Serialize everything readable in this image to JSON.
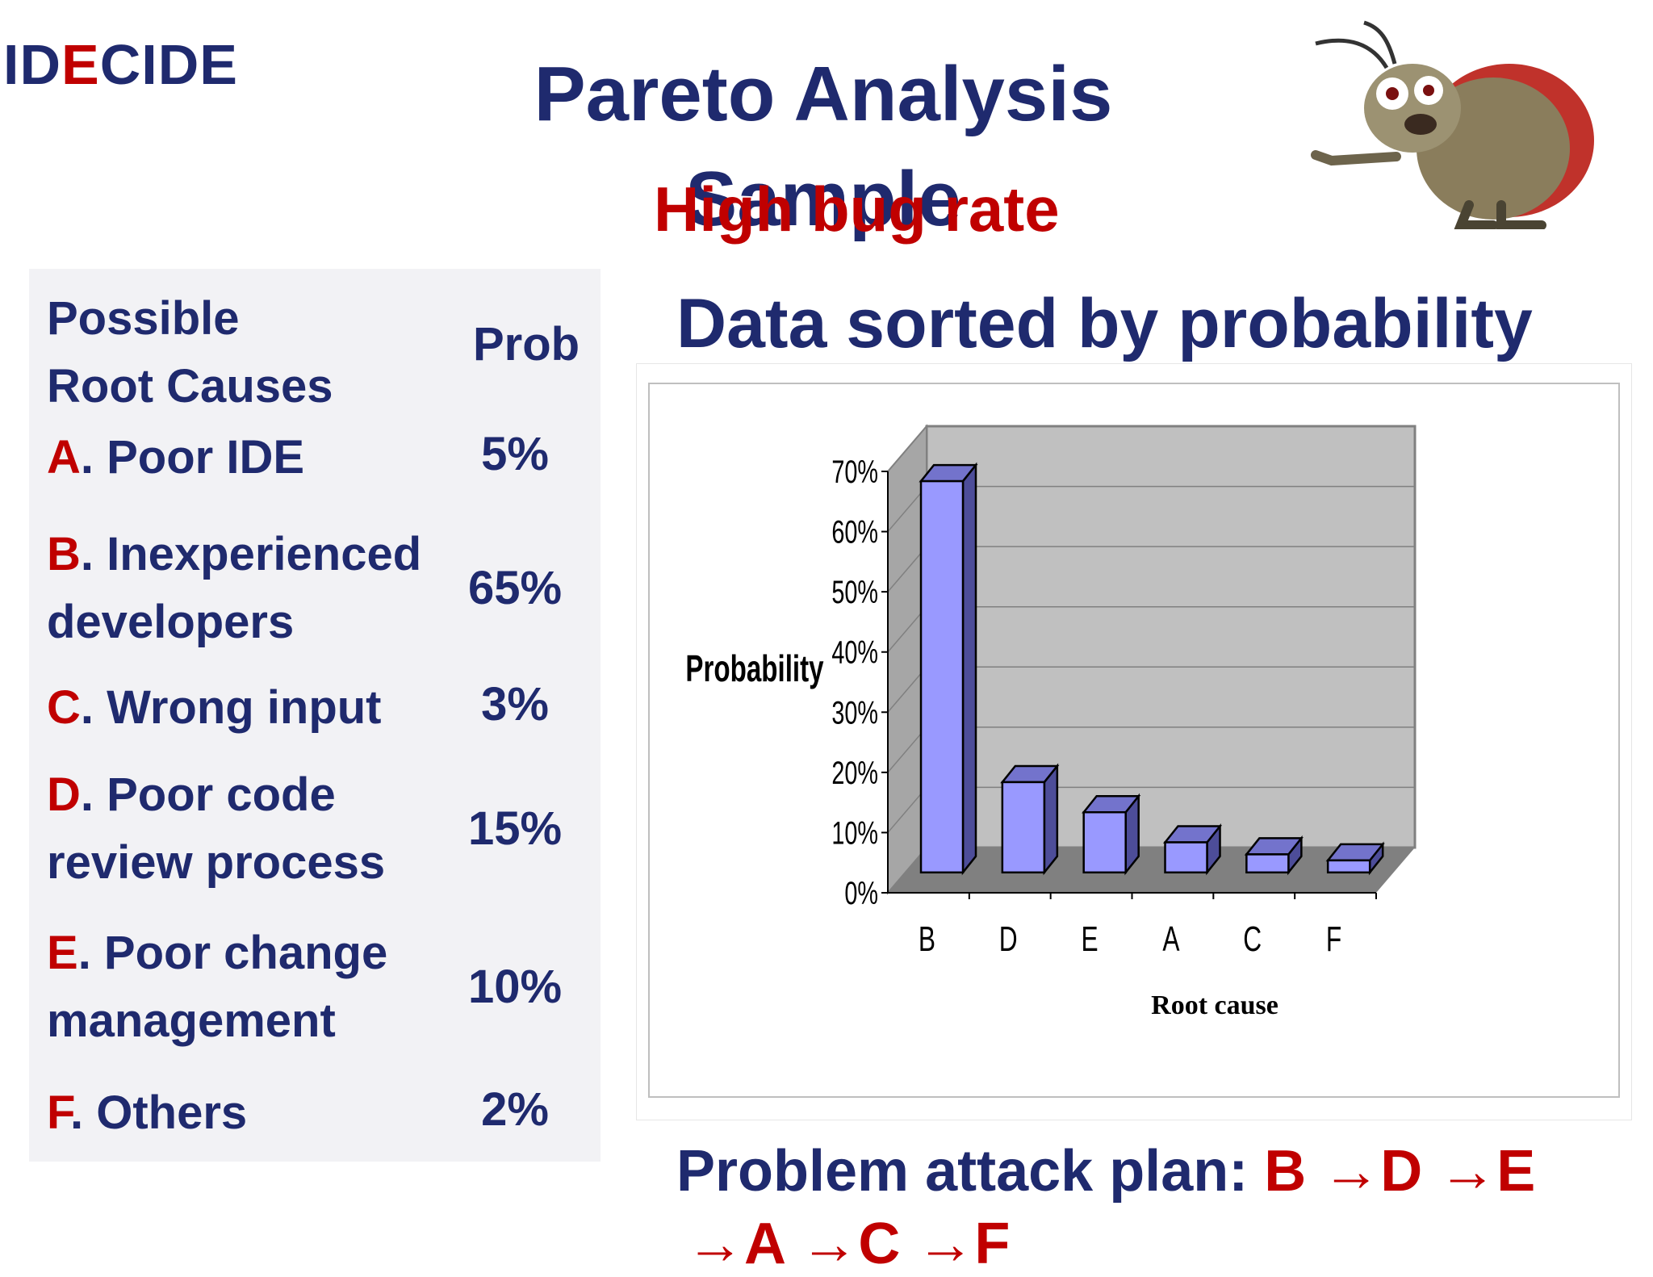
{
  "logo": {
    "prefix": "ID",
    "highlight": "E",
    "suffix": "CIDE"
  },
  "title": "Pareto Analysis Sample",
  "subtitle": "High bug rate",
  "heading": "Data sorted by probability",
  "table": {
    "header_cause_line1": "Possible",
    "header_cause_line2": "Root Causes",
    "header_prob": "Prob",
    "rows": [
      {
        "letter": "A",
        "text": ". Poor IDE",
        "prob": "5%"
      },
      {
        "letter": "B",
        "text": ". Inexperienced developers",
        "prob": "65%"
      },
      {
        "letter": "C",
        "text": ". Wrong input",
        "prob": "3%"
      },
      {
        "letter": "D",
        "text": ". Poor code review process",
        "prob": "15%"
      },
      {
        "letter": "E",
        "text": ". Poor change management",
        "prob": "10%"
      },
      {
        "letter": "F",
        "text": ". Others",
        "prob": "2%"
      }
    ]
  },
  "chart_data": {
    "type": "bar",
    "categories": [
      "B",
      "D",
      "E",
      "A",
      "C",
      "F"
    ],
    "values": [
      65,
      15,
      10,
      5,
      3,
      2
    ],
    "xlabel": "Root cause",
    "ylabel": "Probability",
    "ylim": [
      0,
      70
    ],
    "yticks": [
      "0%",
      "10%",
      "20%",
      "30%",
      "40%",
      "50%",
      "60%",
      "70%"
    ],
    "grid": true,
    "bar_color": "#9999ff",
    "wall_color": "#c0c0c0",
    "floor_color": "#808080"
  },
  "attack_plan": {
    "label": "Problem attack plan: ",
    "sequence": "B →D →E",
    "sequence_cont": "→A →C →F"
  },
  "colors": {
    "navy": "#1f2a6e",
    "red": "#c00000"
  }
}
